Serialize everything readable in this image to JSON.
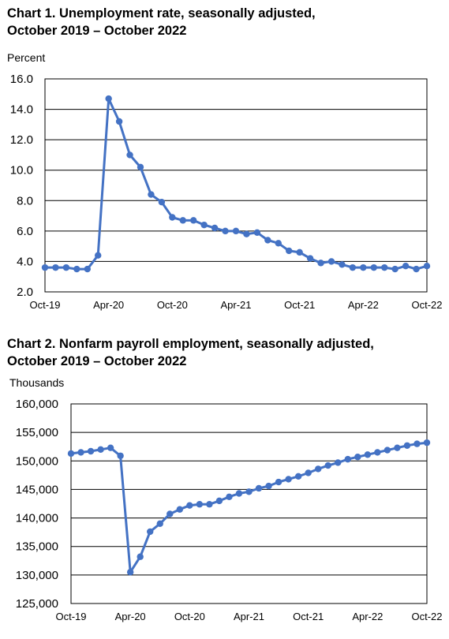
{
  "chart_data": [
    {
      "type": "line",
      "title_line1": "Chart 1. Unemployment rate, seasonally adjusted,",
      "title_line2": "October 2019 – October 2022",
      "ylabel": "Percent",
      "xlabel": "",
      "ylim": [
        2.0,
        16.0
      ],
      "y_ticks": [
        "2.0",
        "4.0",
        "6.0",
        "8.0",
        "10.0",
        "12.0",
        "14.0",
        "16.0"
      ],
      "x_ticks": [
        {
          "label": "Oct-19",
          "index": 0
        },
        {
          "label": "Apr-20",
          "index": 6
        },
        {
          "label": "Oct-20",
          "index": 12
        },
        {
          "label": "Apr-21",
          "index": 18
        },
        {
          "label": "Oct-21",
          "index": 24
        },
        {
          "label": "Apr-22",
          "index": 30
        },
        {
          "label": "Oct-22",
          "index": 36
        }
      ],
      "grid": true,
      "color": "#4472c4",
      "series": [
        {
          "values": [
            3.6,
            3.6,
            3.6,
            3.5,
            3.5,
            4.4,
            14.7,
            13.2,
            11.0,
            10.2,
            8.4,
            7.9,
            6.9,
            6.7,
            6.7,
            6.4,
            6.2,
            6.0,
            6.0,
            5.8,
            5.9,
            5.4,
            5.2,
            4.7,
            4.6,
            4.2,
            3.9,
            4.0,
            3.8,
            3.6,
            3.6,
            3.6,
            3.6,
            3.5,
            3.7,
            3.5,
            3.7
          ]
        }
      ]
    },
    {
      "type": "line",
      "title_line1": "Chart 2. Nonfarm payroll employment, seasonally adjusted,",
      "title_line2": "October 2019 – October 2022",
      "ylabel": "Thousands",
      "xlabel": "",
      "ylim": [
        125000,
        160000
      ],
      "y_ticks": [
        "125,000",
        "130,000",
        "135,000",
        "140,000",
        "145,000",
        "150,000",
        "155,000",
        "160,000"
      ],
      "x_ticks": [
        {
          "label": "Oct-19",
          "index": 0
        },
        {
          "label": "Apr-20",
          "index": 6
        },
        {
          "label": "Oct-20",
          "index": 12
        },
        {
          "label": "Apr-21",
          "index": 18
        },
        {
          "label": "Oct-21",
          "index": 24
        },
        {
          "label": "Apr-22",
          "index": 30
        },
        {
          "label": "Oct-22",
          "index": 36
        }
      ],
      "grid": true,
      "color": "#4472c4",
      "series": [
        {
          "values": [
            151300,
            151500,
            151700,
            152000,
            152300,
            150900,
            130500,
            133200,
            137600,
            139000,
            140700,
            141500,
            142200,
            142400,
            142400,
            143000,
            143700,
            144300,
            144600,
            145200,
            145600,
            146300,
            146800,
            147300,
            147900,
            148600,
            149200,
            149700,
            150300,
            150700,
            151100,
            151500,
            151900,
            152300,
            152700,
            153000,
            153200
          ]
        }
      ]
    }
  ]
}
